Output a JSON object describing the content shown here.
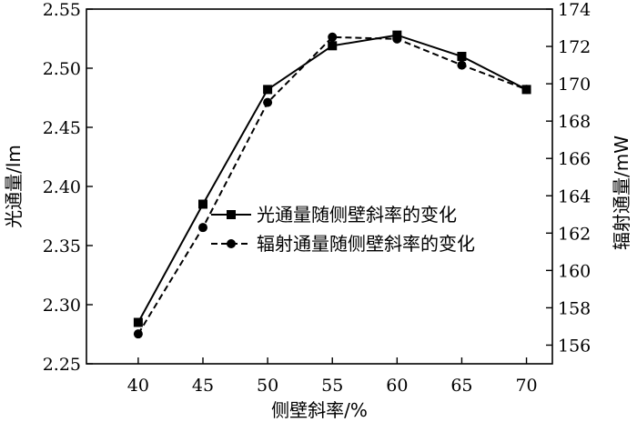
{
  "chart_data": {
    "type": "line",
    "title": "",
    "xlabel": "侧壁斜率/%",
    "ylabel_left": "光通量/lm",
    "ylabel_right": "辐射通量/mW",
    "x": [
      40,
      45,
      50,
      55,
      60,
      65,
      70
    ],
    "x_ticks": [
      "40",
      "45",
      "50",
      "55",
      "60",
      "65",
      "70"
    ],
    "xlim": [
      36,
      72
    ],
    "ylim_left": [
      2.25,
      2.55
    ],
    "ylim_right": [
      155,
      174
    ],
    "y_ticks_left": [
      "2.25",
      "2.30",
      "2.35",
      "2.40",
      "2.45",
      "2.50",
      "2.55"
    ],
    "y_ticks_right": [
      "156",
      "158",
      "160",
      "162",
      "164",
      "166",
      "168",
      "170",
      "172",
      "174"
    ],
    "series": [
      {
        "name": "光通量随侧壁斜率的变化",
        "axis": "left",
        "marker": "square",
        "line_style": "solid",
        "values": [
          2.285,
          2.385,
          2.482,
          2.519,
          2.528,
          2.51,
          2.482
        ]
      },
      {
        "name": "辐射通量随侧壁斜率的变化",
        "axis": "right",
        "marker": "circle",
        "line_style": "dashed",
        "values": [
          156.6,
          162.3,
          169.0,
          172.5,
          172.4,
          171.0,
          169.7
        ]
      }
    ],
    "grid": false,
    "legend_position": "center-right"
  }
}
